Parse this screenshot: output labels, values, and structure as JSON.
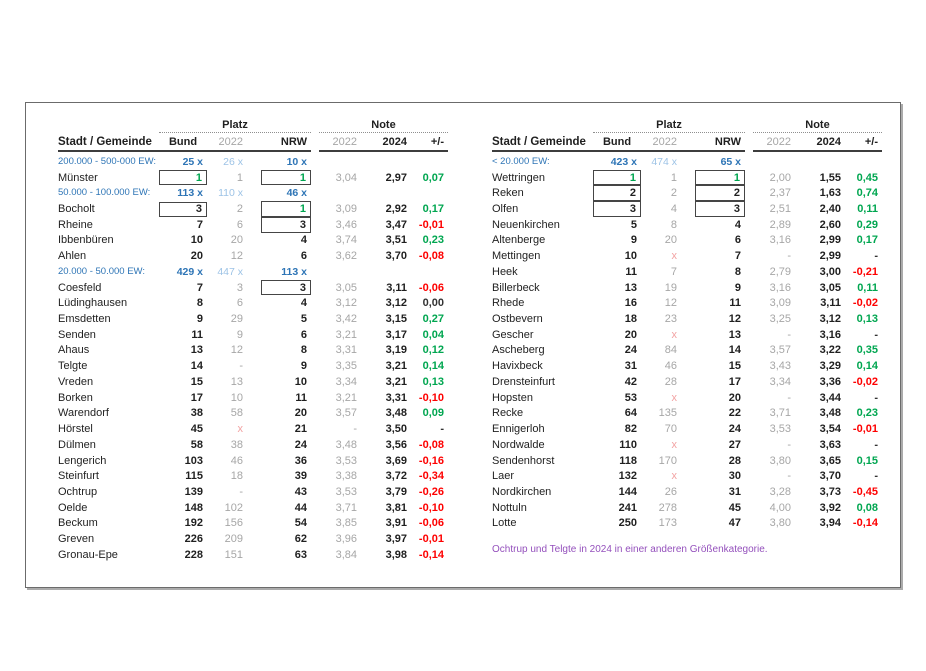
{
  "colors": {
    "category_blue": "#2e75b6",
    "category_light_blue": "#9dc3e6",
    "muted_gray": "#a6a6a6",
    "positive_green": "#00a650",
    "negative_red": "#fe0000",
    "dropped_x_pink": "#f2a2a2",
    "footnote_purple": "#9450bc"
  },
  "footnote": "Ochtrup und Telgte in 2024 in einer anderen Größenkategorie.",
  "tables": [
    {
      "header": {
        "name": "Stadt / Gemeinde",
        "group_platz": "Platz",
        "group_note": "Note",
        "bund": "Bund",
        "platz_2022": "2022",
        "nrw": "NRW",
        "note_2022": "2022",
        "note_2024": "2024",
        "diff": "+/-"
      },
      "rows": [
        {
          "type": "category",
          "label": "200.000 - 500-000 EW:",
          "bund_count": "25 x",
          "count_2022": "26 x",
          "nrw_count": "10 x"
        },
        {
          "type": "city",
          "name": "Münster",
          "bund": "1",
          "bund_box": "s",
          "bund_green": true,
          "platz_2022": "1",
          "nrw": "1",
          "nrw_box": "s",
          "nrw_green": true,
          "note_2022": "3,04",
          "note_2024": "2,97",
          "diff": "0,07",
          "diff_color": "g"
        },
        {
          "type": "category",
          "label": "50.000 - 100.000 EW:",
          "bund_count": "113 x",
          "count_2022": "110 x",
          "nrw_count": "46 x"
        },
        {
          "type": "city",
          "name": "Bocholt",
          "bund": "3",
          "bund_box": "s",
          "platz_2022": "2",
          "nrw": "1",
          "nrw_box": "t",
          "nrw_green": true,
          "note_2022": "3,09",
          "note_2024": "2,92",
          "diff": "0,17",
          "diff_color": "g"
        },
        {
          "type": "city",
          "name": "Rheine",
          "bund": "7",
          "platz_2022": "6",
          "nrw": "3",
          "nrw_box": "b",
          "note_2022": "3,46",
          "note_2024": "3,47",
          "diff": "-0,01",
          "diff_color": "r"
        },
        {
          "type": "city",
          "name": "Ibbenbüren",
          "bund": "10",
          "platz_2022": "20",
          "nrw": "4",
          "note_2022": "3,74",
          "note_2024": "3,51",
          "diff": "0,23",
          "diff_color": "g"
        },
        {
          "type": "city",
          "name": "Ahlen",
          "bund": "20",
          "platz_2022": "12",
          "nrw": "6",
          "note_2022": "3,62",
          "note_2024": "3,70",
          "diff": "-0,08",
          "diff_color": "r"
        },
        {
          "type": "category",
          "label": "20.000 - 50.000 EW:",
          "bund_count": "429 x",
          "count_2022": "447 x",
          "nrw_count": "113 x"
        },
        {
          "type": "city",
          "name": "Coesfeld",
          "bund": "7",
          "platz_2022": "3",
          "nrw": "3",
          "nrw_box": "s",
          "note_2022": "3,05",
          "note_2024": "3,11",
          "diff": "-0,06",
          "diff_color": "r"
        },
        {
          "type": "city",
          "name": "Lüdinghausen",
          "bund": "8",
          "platz_2022": "6",
          "nrw": "4",
          "note_2022": "3,12",
          "note_2024": "3,12",
          "diff": "0,00",
          "diff_color": "k"
        },
        {
          "type": "city",
          "name": "Emsdetten",
          "bund": "9",
          "platz_2022": "29",
          "nrw": "5",
          "note_2022": "3,42",
          "note_2024": "3,15",
          "diff": "0,27",
          "diff_color": "g"
        },
        {
          "type": "city",
          "name": "Senden",
          "bund": "11",
          "platz_2022": "9",
          "nrw": "6",
          "note_2022": "3,21",
          "note_2024": "3,17",
          "diff": "0,04",
          "diff_color": "g"
        },
        {
          "type": "city",
          "name": "Ahaus",
          "bund": "13",
          "platz_2022": "12",
          "nrw": "8",
          "note_2022": "3,31",
          "note_2024": "3,19",
          "diff": "0,12",
          "diff_color": "g"
        },
        {
          "type": "city",
          "name": "Telgte",
          "bund": "14",
          "platz_2022": "-",
          "nrw": "9",
          "note_2022": "3,35",
          "note_2024": "3,21",
          "diff": "0,14",
          "diff_color": "g"
        },
        {
          "type": "city",
          "name": "Vreden",
          "bund": "15",
          "platz_2022": "13",
          "nrw": "10",
          "note_2022": "3,34",
          "note_2024": "3,21",
          "diff": "0,13",
          "diff_color": "g"
        },
        {
          "type": "city",
          "name": "Borken",
          "bund": "17",
          "platz_2022": "10",
          "nrw": "11",
          "note_2022": "3,21",
          "note_2024": "3,31",
          "diff": "-0,10",
          "diff_color": "r"
        },
        {
          "type": "city",
          "name": "Warendorf",
          "bund": "38",
          "platz_2022": "58",
          "nrw": "20",
          "note_2022": "3,57",
          "note_2024": "3,48",
          "diff": "0,09",
          "diff_color": "g"
        },
        {
          "type": "city",
          "name": "Hörstel",
          "bund": "45",
          "platz_2022": "x",
          "nrw": "21",
          "note_2022": "-",
          "note_2024": "3,50",
          "diff": "-",
          "diff_color": "k"
        },
        {
          "type": "city",
          "name": "Dülmen",
          "bund": "58",
          "platz_2022": "38",
          "nrw": "24",
          "note_2022": "3,48",
          "note_2024": "3,56",
          "diff": "-0,08",
          "diff_color": "r"
        },
        {
          "type": "city",
          "name": "Lengerich",
          "bund": "103",
          "platz_2022": "46",
          "nrw": "36",
          "note_2022": "3,53",
          "note_2024": "3,69",
          "diff": "-0,16",
          "diff_color": "r"
        },
        {
          "type": "city",
          "name": "Steinfurt",
          "bund": "115",
          "platz_2022": "18",
          "nrw": "39",
          "note_2022": "3,38",
          "note_2024": "3,72",
          "diff": "-0,34",
          "diff_color": "r"
        },
        {
          "type": "city",
          "name": "Ochtrup",
          "bund": "139",
          "platz_2022": "-",
          "nrw": "43",
          "note_2022": "3,53",
          "note_2024": "3,79",
          "diff": "-0,26",
          "diff_color": "r"
        },
        {
          "type": "city",
          "name": "Oelde",
          "bund": "148",
          "platz_2022": "102",
          "nrw": "44",
          "note_2022": "3,71",
          "note_2024": "3,81",
          "diff": "-0,10",
          "diff_color": "r"
        },
        {
          "type": "city",
          "name": "Beckum",
          "bund": "192",
          "platz_2022": "156",
          "nrw": "54",
          "note_2022": "3,85",
          "note_2024": "3,91",
          "diff": "-0,06",
          "diff_color": "r"
        },
        {
          "type": "city",
          "name": "Greven",
          "bund": "226",
          "platz_2022": "209",
          "nrw": "62",
          "note_2022": "3,96",
          "note_2024": "3,97",
          "diff": "-0,01",
          "diff_color": "r"
        },
        {
          "type": "city",
          "name": "Gronau-Epe",
          "bund": "228",
          "platz_2022": "151",
          "nrw": "63",
          "note_2022": "3,84",
          "note_2024": "3,98",
          "diff": "-0,14",
          "diff_color": "r"
        }
      ]
    },
    {
      "header": {
        "name": "Stadt / Gemeinde",
        "group_platz": "Platz",
        "group_note": "Note",
        "bund": "Bund",
        "platz_2022": "2022",
        "nrw": "NRW",
        "note_2022": "2022",
        "note_2024": "2024",
        "diff": "+/-"
      },
      "rows": [
        {
          "type": "category",
          "label": "< 20.000 EW:",
          "bund_count": "423 x",
          "count_2022": "474 x",
          "nrw_count": "65 x"
        },
        {
          "type": "city",
          "name": "Wettringen",
          "bund": "1",
          "bund_box": "t",
          "bund_green": true,
          "platz_2022": "1",
          "nrw": "1",
          "nrw_box": "t",
          "nrw_green": true,
          "note_2022": "2,00",
          "note_2024": "1,55",
          "diff": "0,45",
          "diff_color": "g"
        },
        {
          "type": "city",
          "name": "Reken",
          "bund": "2",
          "bund_box": "m",
          "platz_2022": "2",
          "nrw": "2",
          "nrw_box": "m",
          "note_2022": "2,37",
          "note_2024": "1,63",
          "diff": "0,74",
          "diff_color": "g"
        },
        {
          "type": "city",
          "name": "Olfen",
          "bund": "3",
          "bund_box": "b",
          "platz_2022": "4",
          "nrw": "3",
          "nrw_box": "b",
          "note_2022": "2,51",
          "note_2024": "2,40",
          "diff": "0,11",
          "diff_color": "g"
        },
        {
          "type": "city",
          "name": "Neuenkirchen",
          "bund": "5",
          "platz_2022": "8",
          "nrw": "4",
          "note_2022": "2,89",
          "note_2024": "2,60",
          "diff": "0,29",
          "diff_color": "g"
        },
        {
          "type": "city",
          "name": "Altenberge",
          "bund": "9",
          "platz_2022": "20",
          "nrw": "6",
          "note_2022": "3,16",
          "note_2024": "2,99",
          "diff": "0,17",
          "diff_color": "g"
        },
        {
          "type": "city",
          "name": "Mettingen",
          "bund": "10",
          "platz_2022": "x",
          "nrw": "7",
          "note_2022": "-",
          "note_2024": "2,99",
          "diff": "-",
          "diff_color": "k"
        },
        {
          "type": "city",
          "name": "Heek",
          "bund": "11",
          "platz_2022": "7",
          "nrw": "8",
          "note_2022": "2,79",
          "note_2024": "3,00",
          "diff": "-0,21",
          "diff_color": "r"
        },
        {
          "type": "city",
          "name": "Billerbeck",
          "bund": "13",
          "platz_2022": "19",
          "nrw": "9",
          "note_2022": "3,16",
          "note_2024": "3,05",
          "diff": "0,11",
          "diff_color": "g"
        },
        {
          "type": "city",
          "name": "Rhede",
          "bund": "16",
          "platz_2022": "12",
          "nrw": "11",
          "note_2022": "3,09",
          "note_2024": "3,11",
          "diff": "-0,02",
          "diff_color": "r"
        },
        {
          "type": "city",
          "name": "Ostbevern",
          "bund": "18",
          "platz_2022": "23",
          "nrw": "12",
          "note_2022": "3,25",
          "note_2024": "3,12",
          "diff": "0,13",
          "diff_color": "g"
        },
        {
          "type": "city",
          "name": "Gescher",
          "bund": "20",
          "platz_2022": "x",
          "nrw": "13",
          "note_2022": "-",
          "note_2024": "3,16",
          "diff": "-",
          "diff_color": "k"
        },
        {
          "type": "city",
          "name": "Ascheberg",
          "bund": "24",
          "platz_2022": "84",
          "nrw": "14",
          "note_2022": "3,57",
          "note_2024": "3,22",
          "diff": "0,35",
          "diff_color": "g"
        },
        {
          "type": "city",
          "name": "Havixbeck",
          "bund": "31",
          "platz_2022": "46",
          "nrw": "15",
          "note_2022": "3,43",
          "note_2024": "3,29",
          "diff": "0,14",
          "diff_color": "g"
        },
        {
          "type": "city",
          "name": "Drensteinfurt",
          "bund": "42",
          "platz_2022": "28",
          "nrw": "17",
          "note_2022": "3,34",
          "note_2024": "3,36",
          "diff": "-0,02",
          "diff_color": "r"
        },
        {
          "type": "city",
          "name": "Hopsten",
          "bund": "53",
          "platz_2022": "x",
          "nrw": "20",
          "note_2022": "-",
          "note_2024": "3,44",
          "diff": "-",
          "diff_color": "k"
        },
        {
          "type": "city",
          "name": "Recke",
          "bund": "64",
          "platz_2022": "135",
          "nrw": "22",
          "note_2022": "3,71",
          "note_2024": "3,48",
          "diff": "0,23",
          "diff_color": "g"
        },
        {
          "type": "city",
          "name": "Ennigerloh",
          "bund": "82",
          "platz_2022": "70",
          "nrw": "24",
          "note_2022": "3,53",
          "note_2024": "3,54",
          "diff": "-0,01",
          "diff_color": "r"
        },
        {
          "type": "city",
          "name": "Nordwalde",
          "bund": "110",
          "platz_2022": "x",
          "nrw": "27",
          "note_2022": "-",
          "note_2024": "3,63",
          "diff": "-",
          "diff_color": "k"
        },
        {
          "type": "city",
          "name": "Sendenhorst",
          "bund": "118",
          "platz_2022": "170",
          "nrw": "28",
          "note_2022": "3,80",
          "note_2024": "3,65",
          "diff": "0,15",
          "diff_color": "g"
        },
        {
          "type": "city",
          "name": "Laer",
          "bund": "132",
          "platz_2022": "x",
          "nrw": "30",
          "note_2022": "-",
          "note_2024": "3,70",
          "diff": "-",
          "diff_color": "k"
        },
        {
          "type": "city",
          "name": "Nordkirchen",
          "bund": "144",
          "platz_2022": "26",
          "nrw": "31",
          "note_2022": "3,28",
          "note_2024": "3,73",
          "diff": "-0,45",
          "diff_color": "r"
        },
        {
          "type": "city",
          "name": "Nottuln",
          "bund": "241",
          "platz_2022": "278",
          "nrw": "45",
          "note_2022": "4,00",
          "note_2024": "3,92",
          "diff": "0,08",
          "diff_color": "g"
        },
        {
          "type": "city",
          "name": "Lotte",
          "bund": "250",
          "platz_2022": "173",
          "nrw": "47",
          "note_2022": "3,80",
          "note_2024": "3,94",
          "diff": "-0,14",
          "diff_color": "r"
        }
      ]
    }
  ]
}
